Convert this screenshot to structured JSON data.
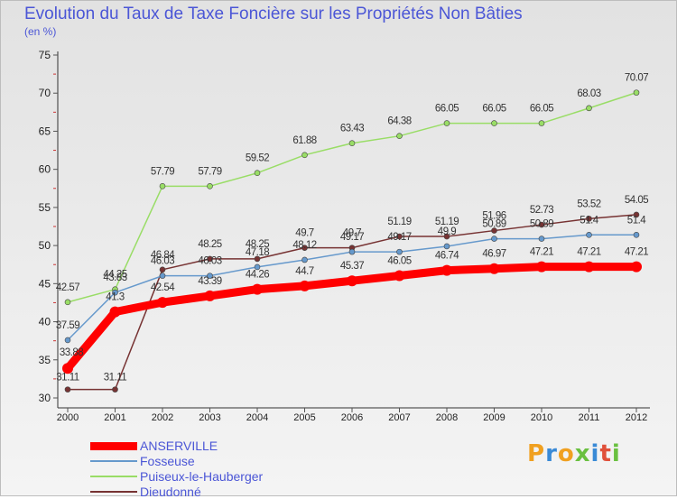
{
  "chart_data": {
    "type": "line",
    "title": "Evolution du Taux de Taxe Foncière sur les Propriétés Non Bâties",
    "ylabel": "(en %)",
    "xlabel": "",
    "ylim": [
      30,
      75
    ],
    "y_ticks": [
      "30",
      "35",
      "40",
      "45",
      "50",
      "55",
      "60",
      "65",
      "70",
      "75"
    ],
    "categories": [
      "2000",
      "2001",
      "2002",
      "2003",
      "2004",
      "2005",
      "2006",
      "2007",
      "2008",
      "2009",
      "2010",
      "2011",
      "2012"
    ],
    "series": [
      {
        "name": "ANSERVILLE",
        "color": "#ff0000",
        "values": [
          33.88,
          41.3,
          42.54,
          43.39,
          44.26,
          44.7,
          45.37,
          46.05,
          46.74,
          46.97,
          47.21,
          47.21,
          47.21
        ],
        "labels": [
          "33.88",
          "41.3",
          "42.54",
          "43.39",
          "44.26",
          "44.7",
          "45.37",
          "46.05",
          "46.74",
          "46.97",
          "47.21",
          "47.21",
          "47.21"
        ]
      },
      {
        "name": "Fosseuse",
        "color": "#6699cc",
        "values": [
          37.59,
          43.83,
          46.03,
          46.03,
          47.18,
          48.12,
          49.17,
          49.17,
          49.9,
          50.89,
          50.89,
          51.4,
          51.4
        ],
        "labels": [
          "37.59",
          "43.83",
          "46.03",
          "46.03",
          "47.18",
          "48.12",
          "49.17",
          "49.17",
          "49.9",
          "50.89",
          "50.89",
          "51.4",
          "51.4"
        ]
      },
      {
        "name": "Puiseux-le-Hauberger",
        "color": "#99dd66",
        "values": [
          42.57,
          44.25,
          57.79,
          57.79,
          59.52,
          61.88,
          63.43,
          64.38,
          66.05,
          66.05,
          66.05,
          68.03,
          70.07
        ],
        "labels": [
          "42.57",
          "44.25",
          "57.79",
          "57.79",
          "59.52",
          "61.88",
          "63.43",
          "64.38",
          "66.05",
          "66.05",
          "66.05",
          "68.03",
          "70.07"
        ]
      },
      {
        "name": "Dieudonné",
        "color": "#773333",
        "values": [
          31.11,
          31.11,
          46.84,
          48.25,
          48.25,
          49.7,
          49.7,
          51.19,
          51.19,
          51.96,
          52.73,
          53.52,
          54.05
        ],
        "labels": [
          "31.11",
          "31.11",
          "46.84",
          "48.25",
          "48.25",
          "49.7",
          "49.7",
          "51.19",
          "51.19",
          "51.96",
          "52.73",
          "53.52",
          "54.05"
        ]
      }
    ],
    "legend_position": "bottom-left",
    "grid": false
  },
  "logo": {
    "letters": [
      "P",
      "r",
      "o",
      "x",
      "i",
      "t",
      "i"
    ],
    "colors": [
      "#f0a020",
      "#3a8ad6",
      "#f0a020",
      "#6ac040",
      "#3a8ad6",
      "#e0503a",
      "#6ac040"
    ]
  }
}
